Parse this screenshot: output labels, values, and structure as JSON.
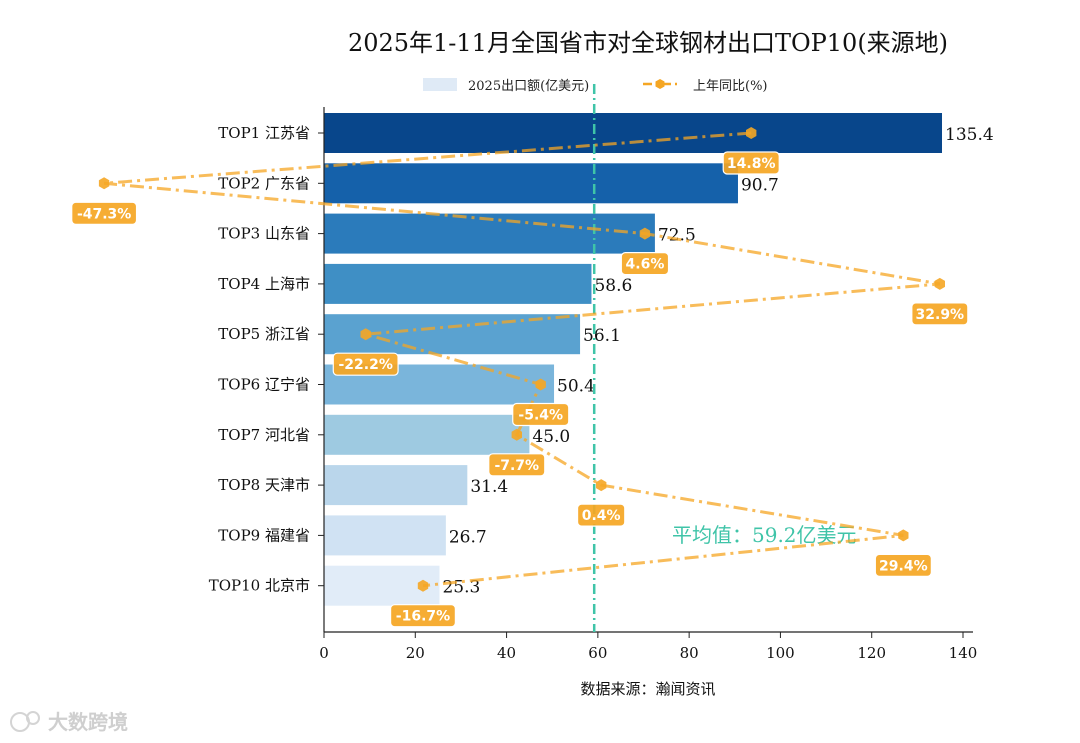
{
  "chart_data": {
    "type": "bar",
    "orientation": "horizontal",
    "title": "2025年1-11月全国省市对全球钢材出口TOP10(来源地)",
    "xlabel": "数据来源：瀚闻资讯",
    "xlim": [
      0,
      140
    ],
    "xticks": [
      0,
      20,
      40,
      60,
      80,
      100,
      120,
      140
    ],
    "categories": [
      "TOP1 江苏省",
      "TOP2 广东省",
      "TOP3 山东省",
      "TOP4 上海市",
      "TOP5 浙江省",
      "TOP6 辽宁省",
      "TOP7 河北省",
      "TOP8 天津市",
      "TOP9 福建省",
      "TOP10 北京市"
    ],
    "series": [
      {
        "name": "2025出口额(亿美元)",
        "values": [
          135.4,
          90.7,
          72.5,
          58.6,
          56.1,
          50.4,
          45.0,
          31.4,
          26.7,
          25.3
        ],
        "value_labels": [
          "135.4",
          "90.7",
          "72.5",
          "58.6",
          "56.1",
          "50.4",
          "45.0",
          "31.4",
          "26.7",
          "25.3"
        ]
      },
      {
        "name": "上年同比(%)",
        "values": [
          14.8,
          -47.3,
          4.6,
          32.9,
          -22.2,
          -5.4,
          -7.7,
          0.4,
          29.4,
          -16.7
        ],
        "value_labels": [
          "14.8%",
          "-47.3%",
          "4.6%",
          "32.9%",
          "-22.2%",
          "-5.4%",
          "-7.7%",
          "0.4%",
          "29.4%",
          "-16.7%"
        ]
      }
    ],
    "bar_colors": [
      "#08468b",
      "#1561aa",
      "#2b7bbb",
      "#3f8fc5",
      "#5aa2d0",
      "#7ab5db",
      "#9ecae1",
      "#bad6eb",
      "#d0e2f3",
      "#e1ecf8"
    ],
    "line_color": "#f5a623",
    "average": {
      "value": 59.2,
      "label": "平均值：59.2亿美元",
      "color": "#3fc4a8"
    },
    "legend_position": "top-center",
    "grid": false
  },
  "watermark": "大数跨境"
}
